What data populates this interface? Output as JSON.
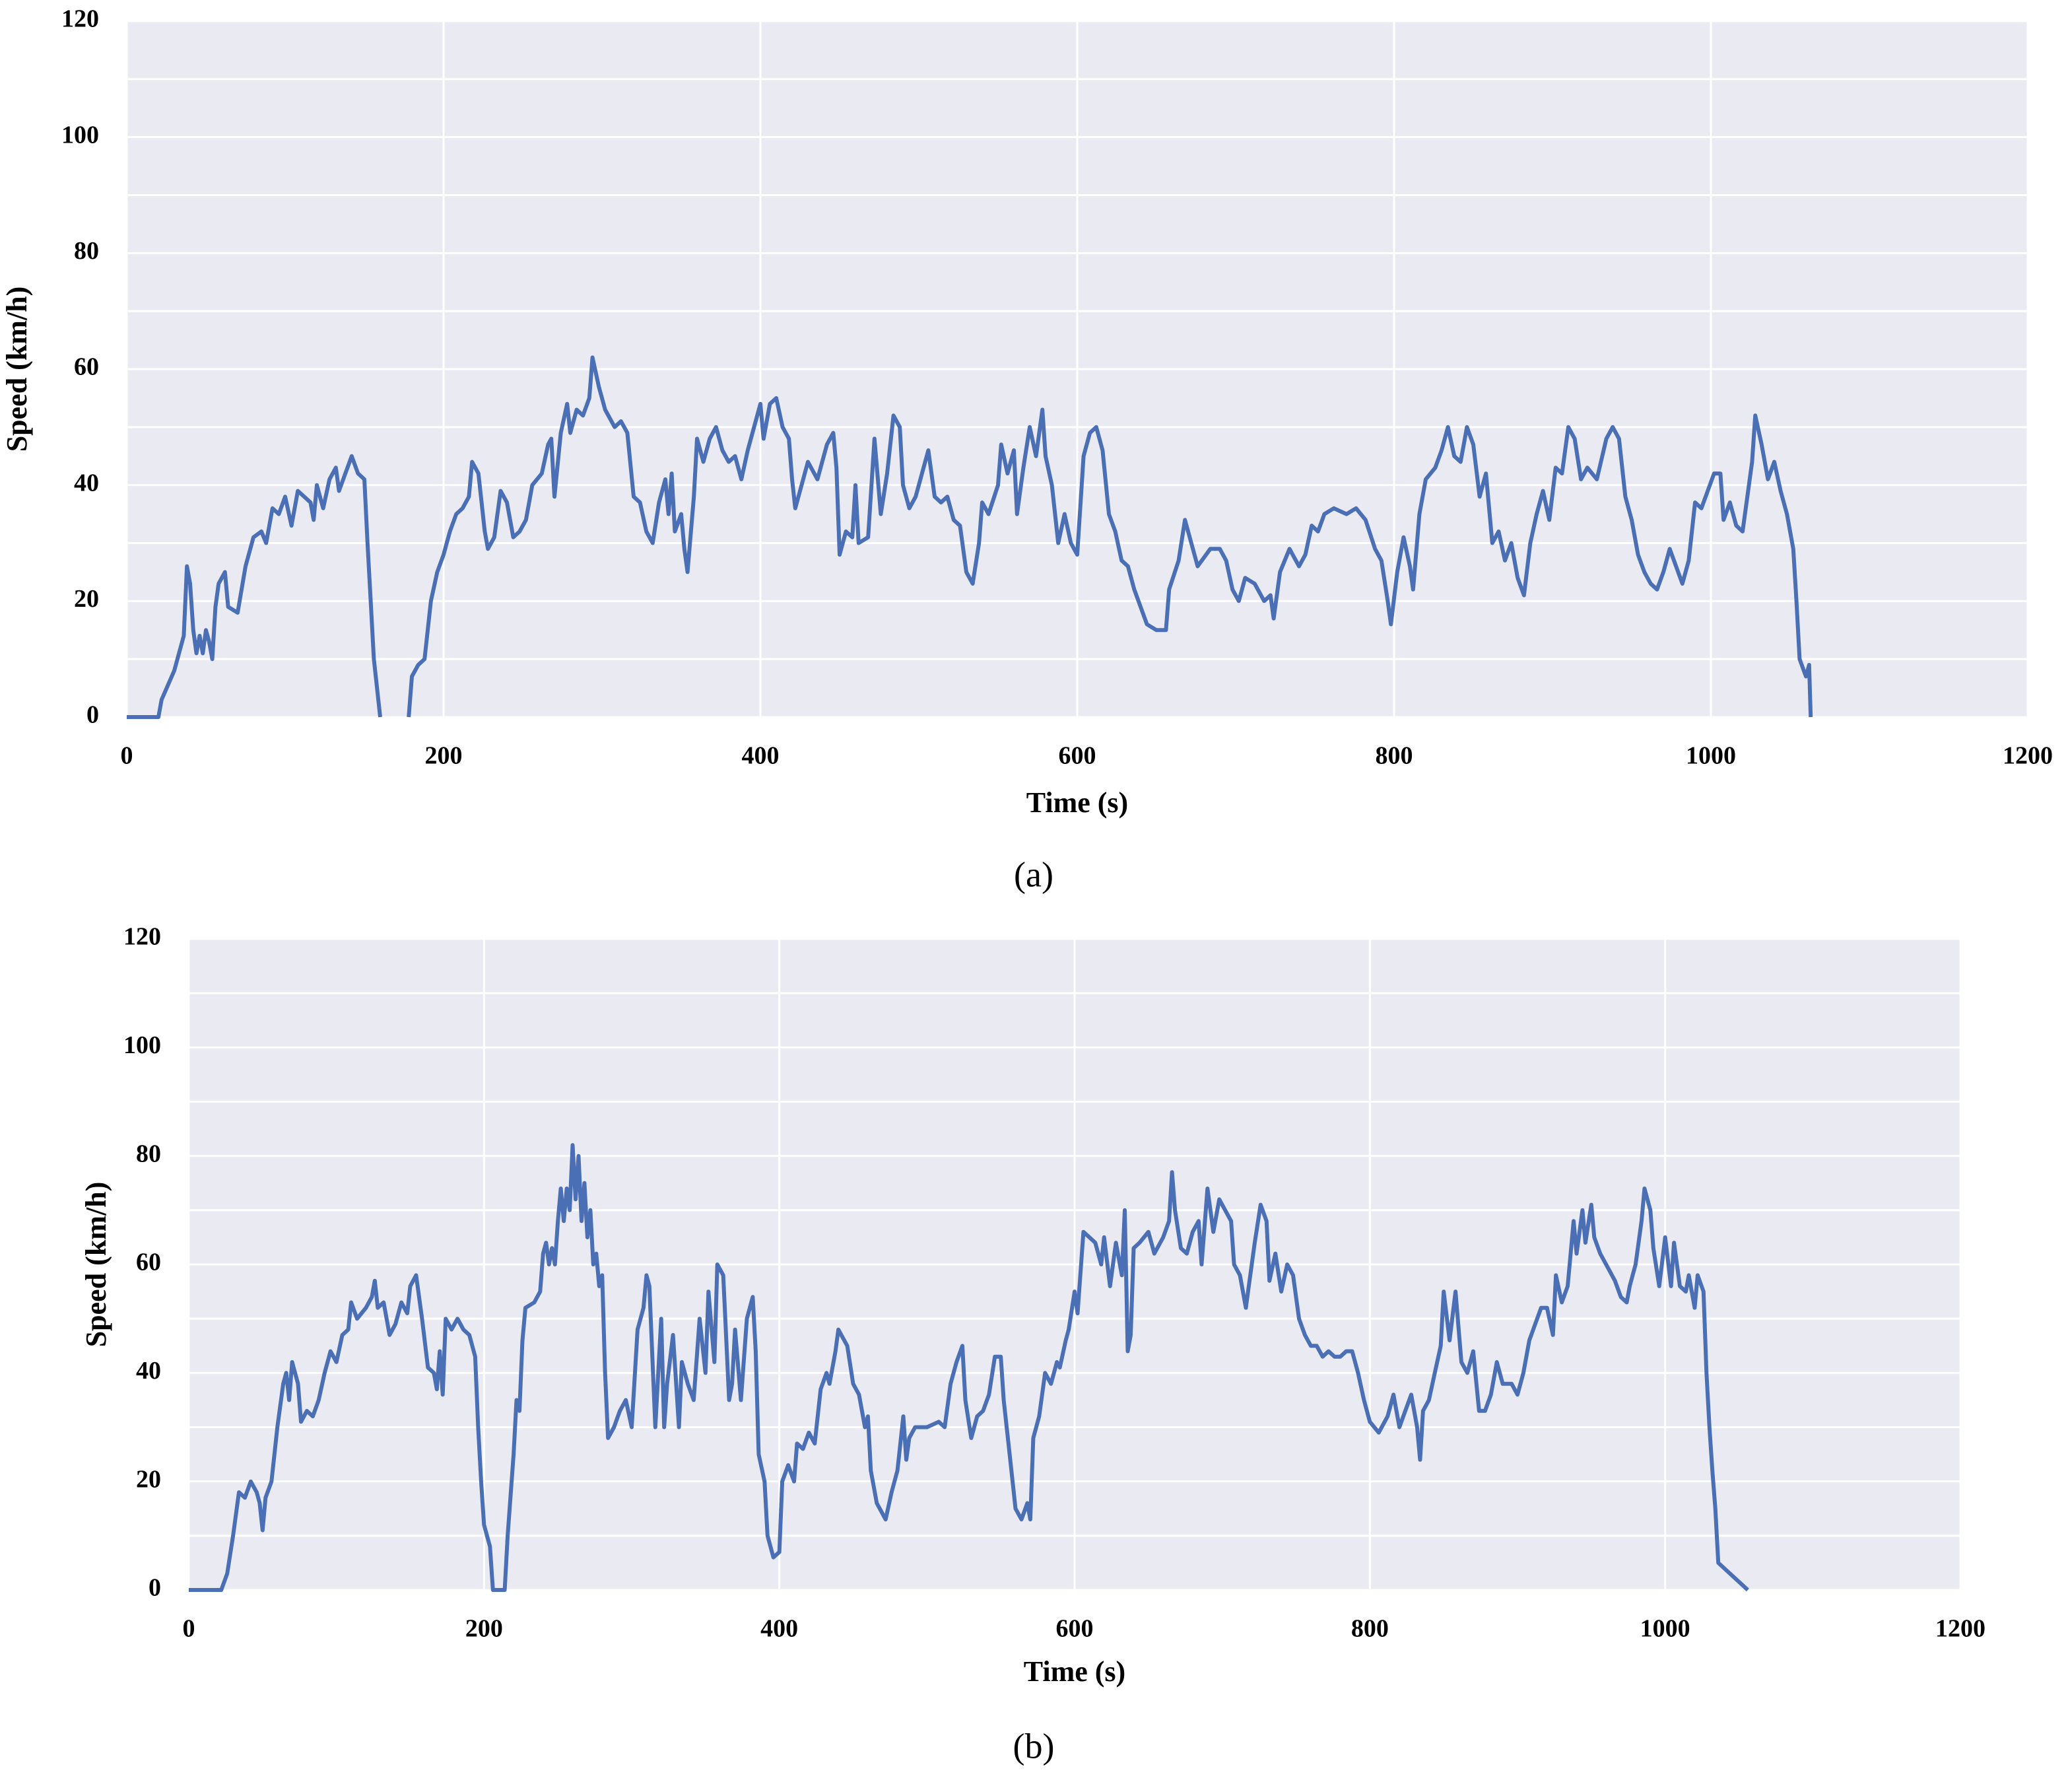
{
  "chart_data": [
    {
      "type": "line",
      "caption": "(a)",
      "x_label": "Time (s)",
      "y_label": "Speed (km/h)",
      "xlim": [
        0,
        1200
      ],
      "xticks": [
        0,
        200,
        400,
        600,
        800,
        1000,
        1200
      ],
      "ylim": [
        0,
        120
      ],
      "yticks": [
        0,
        20,
        40,
        60,
        80,
        100,
        120
      ],
      "y_minor_grid": [
        10,
        30,
        50,
        70,
        90,
        110
      ],
      "grid": true,
      "background": "#eaeaf2",
      "color": "#4a6fb5",
      "x": [
        0,
        20,
        22,
        30,
        36,
        38,
        40,
        42,
        44,
        46,
        48,
        50,
        52,
        54,
        56,
        58,
        60,
        62,
        64,
        70,
        75,
        80,
        85,
        88,
        92,
        96,
        100,
        104,
        108,
        112,
        116,
        118,
        120,
        124,
        128,
        132,
        134,
        138,
        142,
        146,
        150,
        152,
        154,
        156,
        158,
        160,
        170,
        178,
        180,
        184,
        188,
        192,
        196,
        200,
        204,
        208,
        212,
        216,
        218,
        222,
        226,
        228,
        232,
        236,
        240,
        244,
        248,
        252,
        256,
        262,
        266,
        268,
        270,
        274,
        278,
        280,
        284,
        288,
        292,
        294,
        298,
        302,
        308,
        312,
        316,
        320,
        324,
        328,
        332,
        336,
        340,
        342,
        344,
        346,
        350,
        352,
        354,
        358,
        360,
        364,
        368,
        372,
        376,
        380,
        384,
        388,
        392,
        396,
        400,
        402,
        406,
        410,
        414,
        418,
        420,
        422,
        426,
        430,
        436,
        442,
        446,
        448,
        450,
        454,
        458,
        460,
        462,
        468,
        472,
        476,
        480,
        484,
        488,
        490,
        494,
        498,
        502,
        506,
        510,
        514,
        518,
        522,
        526,
        530,
        534,
        538,
        540,
        544,
        550,
        552,
        556,
        560,
        562,
        566,
        570,
        574,
        578,
        580,
        584,
        588,
        592,
        596,
        600,
        604,
        608,
        612,
        616,
        620,
        624,
        628,
        632,
        636,
        640,
        644,
        650,
        656,
        658,
        664,
        668,
        672,
        676,
        684,
        690,
        694,
        698,
        702,
        706,
        712,
        718,
        722,
        724,
        728,
        734,
        740,
        744,
        748,
        752,
        756,
        762,
        770,
        776,
        782,
        788,
        792,
        796,
        798,
        802,
        806,
        810,
        812,
        816,
        820,
        826,
        830,
        834,
        838,
        842,
        846,
        850,
        854,
        858,
        862,
        866,
        870,
        874,
        878,
        882,
        886,
        890,
        894,
        898,
        902,
        906,
        910,
        914,
        918,
        922,
        928,
        934,
        938,
        942,
        946,
        950,
        954,
        958,
        962,
        966,
        970,
        974,
        978,
        982,
        986,
        990,
        994,
        998,
        1002,
        1006,
        1008,
        1012,
        1016,
        1020,
        1024,
        1026,
        1028,
        1032,
        1036,
        1040,
        1044,
        1048,
        1052,
        1054,
        1056,
        1060,
        1062,
        1063
      ],
      "values": [
        0,
        0,
        3,
        8,
        14,
        26,
        23,
        15,
        11,
        14,
        11,
        15,
        13,
        10,
        19,
        23,
        24,
        25,
        19,
        18,
        26,
        31,
        32,
        30,
        36,
        35,
        38,
        33,
        39,
        38,
        37,
        34,
        40,
        36,
        41,
        43,
        39,
        42,
        45,
        42,
        41,
        30,
        20,
        10,
        5,
        0,
        null,
        0,
        7,
        9,
        10,
        20,
        25,
        28,
        32,
        35,
        36,
        38,
        44,
        42,
        32,
        29,
        31,
        39,
        37,
        31,
        32,
        34,
        40,
        42,
        47,
        48,
        38,
        49,
        54,
        49,
        53,
        52,
        55,
        62,
        57,
        53,
        50,
        51,
        49,
        38,
        37,
        32,
        30,
        37,
        41,
        35,
        42,
        32,
        35,
        29,
        25,
        38,
        48,
        44,
        48,
        50,
        46,
        44,
        45,
        41,
        46,
        50,
        54,
        48,
        54,
        55,
        50,
        48,
        41,
        36,
        40,
        44,
        41,
        47,
        49,
        43,
        28,
        32,
        31,
        40,
        30,
        31,
        48,
        35,
        42,
        52,
        50,
        40,
        36,
        38,
        42,
        46,
        38,
        37,
        38,
        34,
        33,
        25,
        23,
        30,
        37,
        35,
        40,
        47,
        42,
        46,
        35,
        43,
        50,
        45,
        53,
        45,
        40,
        30,
        35,
        30,
        28,
        45,
        49,
        50,
        46,
        35,
        32,
        27,
        26,
        22,
        19,
        16,
        15,
        15,
        22,
        27,
        34,
        30,
        26,
        29,
        29,
        27,
        22,
        20,
        24,
        23,
        20,
        21,
        17,
        25,
        29,
        26,
        28,
        33,
        32,
        35,
        36,
        35,
        36,
        34,
        29,
        27,
        20,
        16,
        25,
        31,
        26,
        22,
        35,
        41,
        43,
        46,
        50,
        45,
        44,
        50,
        47,
        38,
        42,
        30,
        32,
        27,
        30,
        24,
        21,
        30,
        35,
        39,
        34,
        43,
        42,
        50,
        48,
        41,
        43,
        41,
        48,
        50,
        48,
        38,
        34,
        28,
        25,
        23,
        22,
        25,
        29,
        26,
        23,
        27,
        37,
        36,
        39,
        42,
        42,
        34,
        37,
        33,
        32,
        40,
        44,
        52,
        47,
        41,
        44,
        39,
        35,
        29,
        20,
        10,
        7,
        9,
        0
      ]
    },
    {
      "type": "line",
      "caption": "(b)",
      "x_label": "Time (s)",
      "y_label": "Speed (km/h)",
      "xlim": [
        0,
        1200
      ],
      "xticks": [
        0,
        200,
        400,
        600,
        800,
        1000,
        1200
      ],
      "ylim": [
        0,
        120
      ],
      "yticks": [
        0,
        20,
        40,
        60,
        80,
        100,
        120
      ],
      "y_minor_grid": [
        10,
        30,
        50,
        70,
        90,
        110
      ],
      "grid": true,
      "background": "#eaeaf2",
      "color": "#4a6fb5",
      "x": [
        0,
        22,
        26,
        30,
        34,
        38,
        42,
        46,
        48,
        50,
        52,
        56,
        60,
        64,
        66,
        68,
        70,
        74,
        76,
        80,
        84,
        88,
        92,
        96,
        100,
        104,
        108,
        110,
        114,
        120,
        124,
        126,
        128,
        132,
        136,
        140,
        144,
        148,
        150,
        154,
        158,
        162,
        166,
        168,
        170,
        172,
        174,
        178,
        182,
        186,
        190,
        194,
        196,
        198,
        200,
        204,
        206,
        214,
        216,
        220,
        222,
        224,
        226,
        228,
        234,
        238,
        240,
        242,
        244,
        246,
        248,
        250,
        252,
        254,
        256,
        258,
        260,
        262,
        264,
        266,
        268,
        270,
        272,
        274,
        276,
        278,
        280,
        282,
        284,
        288,
        292,
        296,
        300,
        304,
        308,
        310,
        312,
        316,
        320,
        322,
        324,
        328,
        332,
        334,
        338,
        342,
        346,
        350,
        352,
        356,
        358,
        362,
        366,
        368,
        370,
        374,
        378,
        382,
        384,
        386,
        390,
        392,
        396,
        400,
        402,
        406,
        410,
        412,
        416,
        420,
        424,
        428,
        432,
        434,
        438,
        440,
        446,
        450,
        454,
        458,
        460,
        462,
        466,
        472,
        476,
        480,
        484,
        486,
        488,
        492,
        500,
        508,
        512,
        516,
        520,
        524,
        526,
        530,
        534,
        538,
        542,
        546,
        550,
        552,
        556,
        560,
        564,
        568,
        570,
        572,
        576,
        580,
        584,
        588,
        590,
        594,
        596,
        600,
        602,
        606,
        610,
        614,
        618,
        620,
        624,
        628,
        632,
        634,
        636,
        638,
        640,
        644,
        650,
        654,
        660,
        664,
        666,
        668,
        672,
        676,
        680,
        684,
        686,
        690,
        694,
        698,
        702,
        706,
        708,
        712,
        716,
        718,
        722,
        726,
        730,
        732,
        736,
        740,
        744,
        748,
        752,
        756,
        760,
        764,
        768,
        772,
        776,
        780,
        784,
        788,
        792,
        796,
        800,
        806,
        812,
        816,
        820,
        824,
        828,
        832,
        834,
        836,
        840,
        844,
        848,
        850,
        854,
        858,
        862,
        866,
        870,
        874,
        878,
        882,
        886,
        890,
        896,
        900,
        904,
        908,
        912,
        916,
        920,
        924,
        926,
        930,
        934,
        938,
        940,
        944,
        946,
        950,
        952,
        956,
        962,
        966,
        970,
        974,
        976,
        980,
        984,
        986,
        990,
        992,
        996,
        1000,
        1004,
        1006,
        1010,
        1014,
        1016,
        1020,
        1022,
        1026,
        1028,
        1030,
        1032,
        1034,
        1036,
        1056
      ],
      "values": [
        0,
        0,
        3,
        10,
        18,
        17,
        20,
        18,
        16,
        11,
        17,
        20,
        30,
        38,
        40,
        35,
        42,
        38,
        31,
        33,
        32,
        35,
        40,
        44,
        42,
        47,
        48,
        53,
        50,
        52,
        54,
        57,
        52,
        53,
        47,
        49,
        53,
        51,
        56,
        58,
        50,
        41,
        40,
        37,
        44,
        36,
        50,
        48,
        50,
        48,
        47,
        43,
        30,
        20,
        12,
        8,
        0,
        0,
        10,
        25,
        35,
        33,
        46,
        52,
        53,
        55,
        62,
        64,
        60,
        63,
        60,
        68,
        74,
        68,
        74,
        70,
        82,
        72,
        80,
        68,
        75,
        65,
        70,
        60,
        62,
        56,
        58,
        40,
        28,
        30,
        33,
        35,
        30,
        48,
        52,
        58,
        56,
        30,
        50,
        30,
        38,
        47,
        30,
        42,
        38,
        35,
        50,
        40,
        55,
        42,
        60,
        58,
        35,
        38,
        48,
        35,
        50,
        54,
        44,
        25,
        20,
        10,
        6,
        7,
        20,
        23,
        20,
        27,
        26,
        29,
        27,
        37,
        40,
        38,
        44,
        48,
        45,
        38,
        36,
        30,
        32,
        22,
        16,
        13,
        18,
        22,
        32,
        24,
        28,
        30,
        30,
        31,
        30,
        38,
        42,
        45,
        35,
        28,
        32,
        33,
        36,
        43,
        43,
        35,
        25,
        15,
        13,
        16,
        13,
        28,
        32,
        40,
        38,
        42,
        41,
        46,
        48,
        55,
        51,
        66,
        65,
        64,
        60,
        65,
        56,
        64,
        58,
        70,
        44,
        47,
        63,
        64,
        66,
        62,
        65,
        68,
        77,
        70,
        63,
        62,
        66,
        68,
        60,
        74,
        66,
        72,
        70,
        68,
        60,
        58,
        52,
        56,
        64,
        71,
        68,
        57,
        62,
        55,
        60,
        58,
        50,
        47,
        45,
        45,
        43,
        44,
        43,
        43,
        44,
        44,
        40,
        35,
        31,
        29,
        32,
        36,
        30,
        33,
        36,
        30,
        24,
        33,
        35,
        40,
        45,
        55,
        46,
        55,
        42,
        40,
        44,
        33,
        33,
        36,
        42,
        38,
        38,
        36,
        40,
        46,
        49,
        52,
        52,
        47,
        58,
        53,
        56,
        68,
        62,
        70,
        64,
        71,
        65,
        62,
        59,
        57,
        54,
        53,
        56,
        60,
        68,
        74,
        70,
        63,
        56,
        65,
        56,
        64,
        56,
        55,
        58,
        52,
        58,
        55,
        40,
        30,
        22,
        15,
        5,
        0
      ]
    }
  ]
}
